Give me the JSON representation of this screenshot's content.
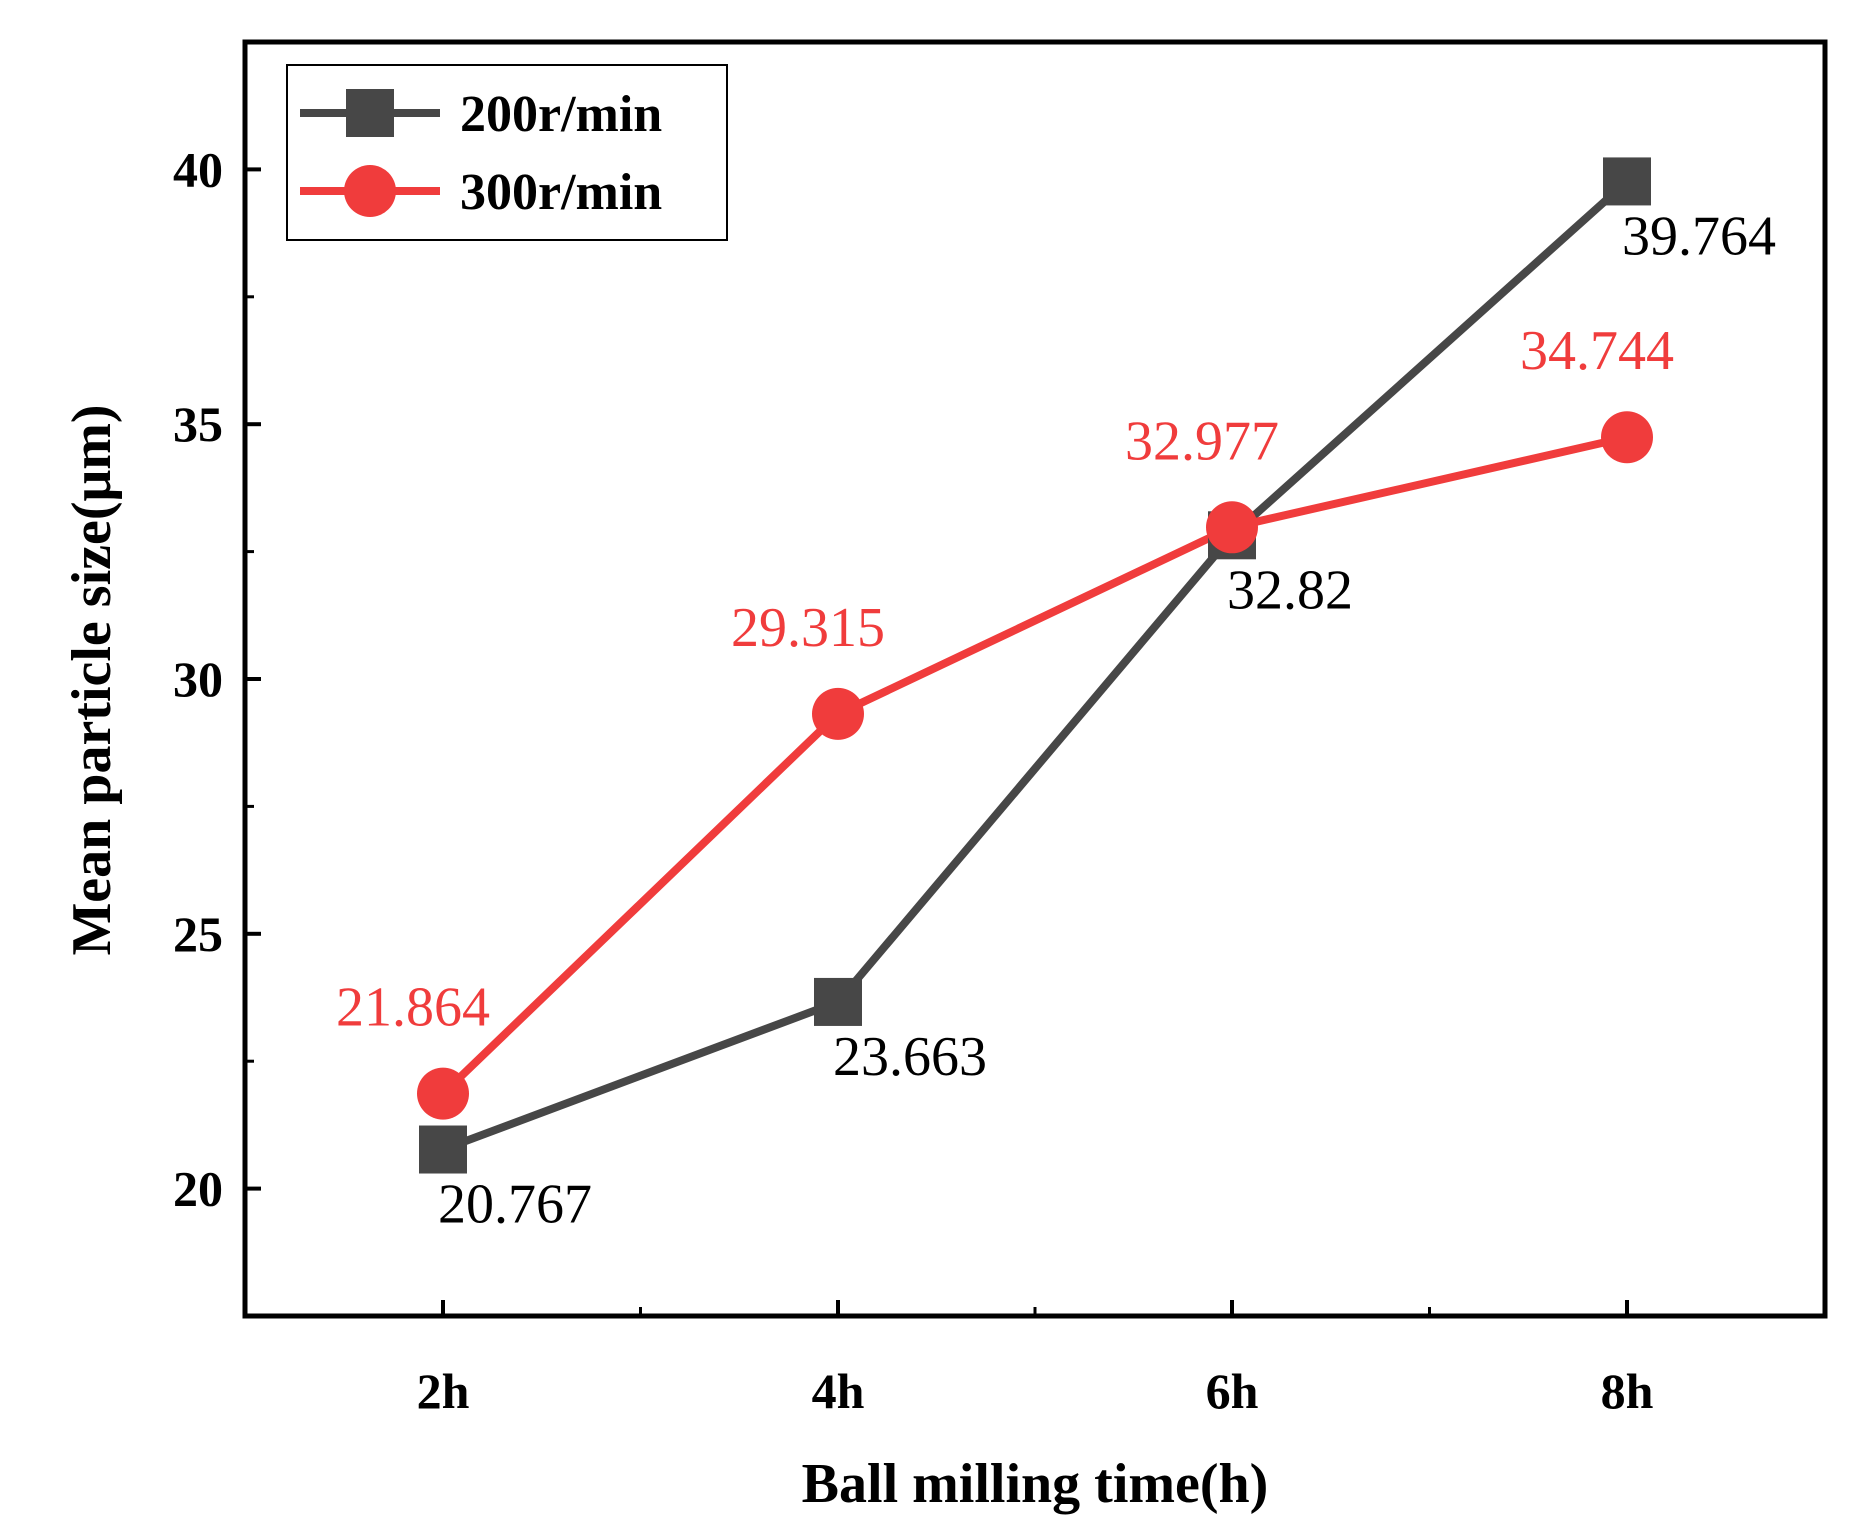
{
  "chart_data": {
    "type": "line",
    "categories": [
      "2h",
      "4h",
      "6h",
      "8h"
    ],
    "xlabel": "Ball milling time(h)",
    "ylabel": "Mean particle size(μm)",
    "ylim": [
      17.5,
      42.5
    ],
    "yticks": [
      20,
      25,
      30,
      35,
      40
    ],
    "legend_position": "top-left",
    "series": [
      {
        "name": "200r/min",
        "marker": "square",
        "color": "#474747",
        "values": [
          20.767,
          23.663,
          32.82,
          39.764
        ],
        "labels": [
          "20.767",
          "23.663",
          "32.82",
          "39.764"
        ],
        "label_placement": "below-right"
      },
      {
        "name": "300r/min",
        "marker": "circle",
        "color": "#f03c3c",
        "values": [
          21.864,
          29.315,
          32.977,
          34.744
        ],
        "labels": [
          "21.864",
          "29.315",
          "32.977",
          "34.744"
        ],
        "label_placement": "above"
      }
    ]
  }
}
